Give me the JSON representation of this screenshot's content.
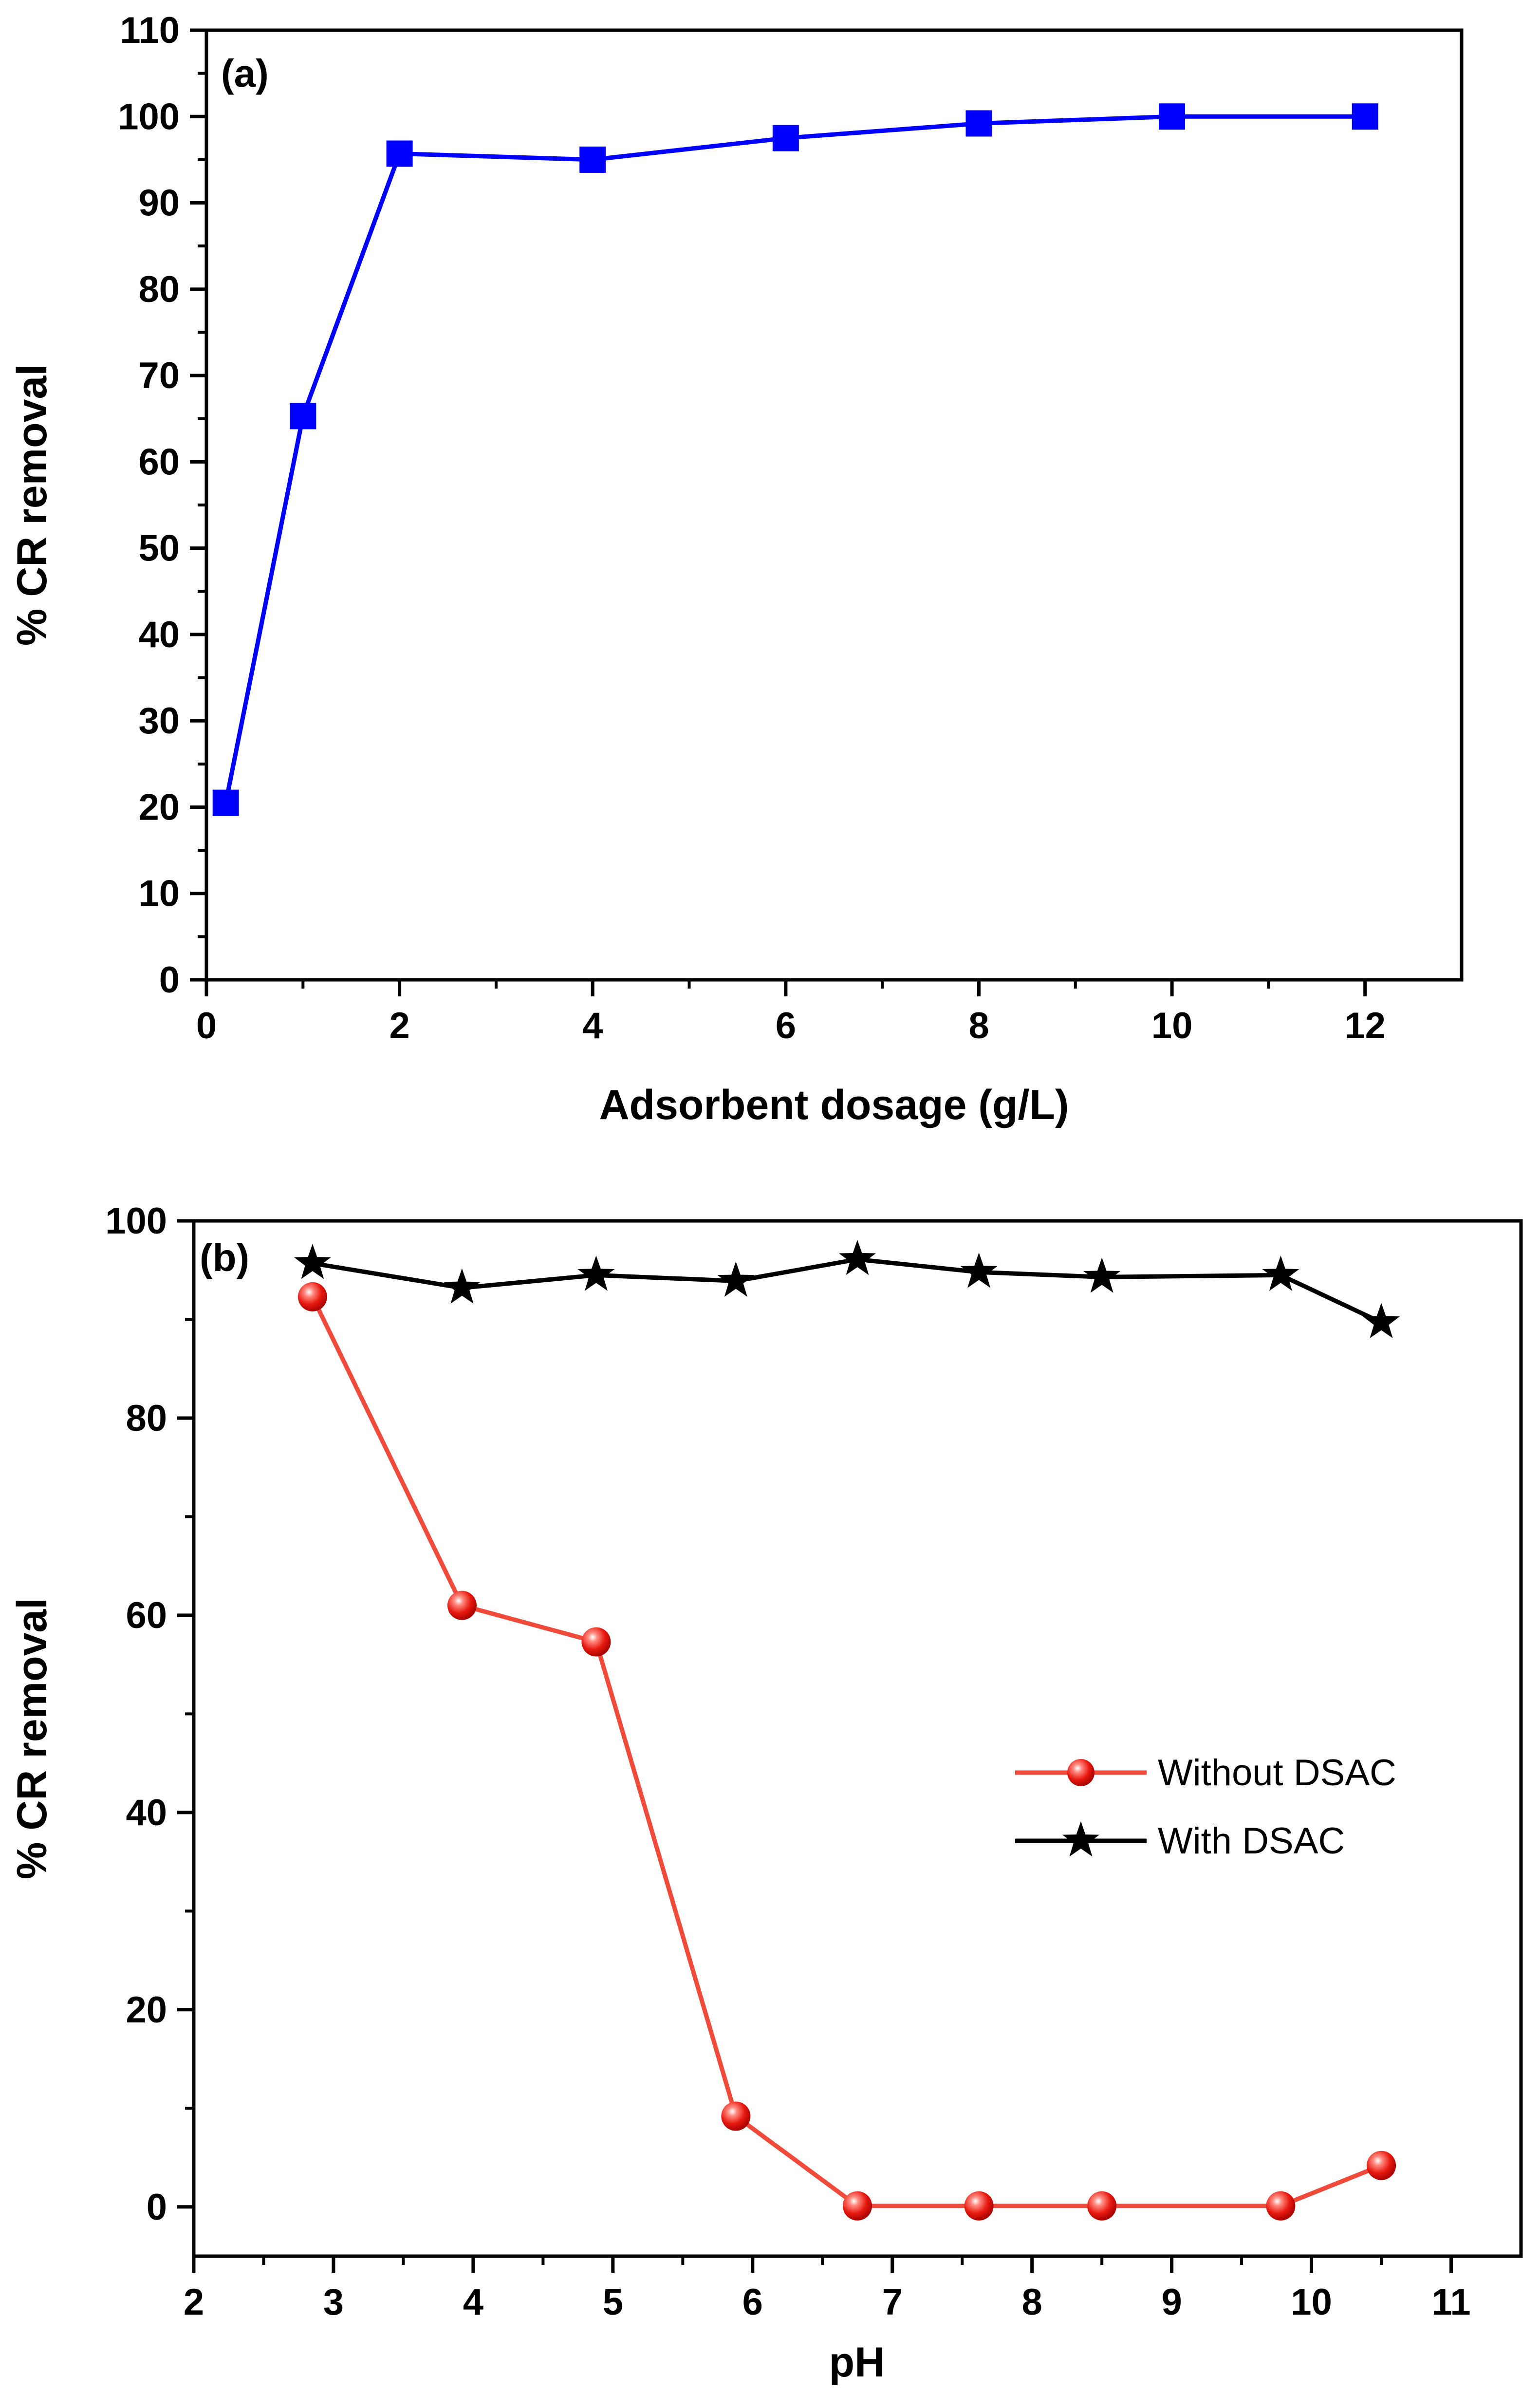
{
  "chart_data": [
    {
      "type": "line",
      "panel_label": "(a)",
      "title": "",
      "xlabel": "Adsorbent dosage (g/L)",
      "ylabel": "% CR removal",
      "xlim": [
        0,
        13
      ],
      "ylim": [
        0,
        110
      ],
      "xticks": [
        0,
        2,
        4,
        6,
        8,
        10,
        12
      ],
      "yticks": [
        0,
        10,
        20,
        30,
        40,
        50,
        60,
        70,
        80,
        90,
        100,
        110
      ],
      "grid": false,
      "colors": {
        "series": "#0000ff"
      },
      "series": [
        {
          "name": "CR removal",
          "marker": "square",
          "x": [
            0.2,
            1,
            2,
            4,
            6,
            8,
            10,
            12
          ],
          "values": [
            20.5,
            65.3,
            95.7,
            95.0,
            97.5,
            99.2,
            100.0,
            100.0
          ]
        }
      ]
    },
    {
      "type": "line",
      "panel_label": "(b)",
      "title": "",
      "xlabel": "pH",
      "ylabel": "% CR removal",
      "xlim": [
        2,
        11.5
      ],
      "ylim": [
        -5,
        100
      ],
      "xticks": [
        2,
        3,
        4,
        5,
        6,
        7,
        8,
        9,
        10,
        11
      ],
      "yticks": [
        0,
        20,
        40,
        60,
        80,
        100
      ],
      "grid": false,
      "legend_position": "center-right",
      "colors": {
        "without": "#f04a3a",
        "with": "#000000",
        "marker_fill": "#e81a10"
      },
      "series": [
        {
          "name": "Without DSAC",
          "marker": "sphere",
          "x": [
            2.85,
            3.92,
            4.88,
            5.88,
            6.75,
            7.62,
            8.5,
            9.78,
            10.5
          ],
          "values": [
            92.3,
            61.0,
            57.3,
            9.2,
            0.1,
            0.1,
            0.1,
            0.1,
            4.2
          ]
        },
        {
          "name": "With DSAC",
          "marker": "star",
          "x": [
            2.85,
            3.92,
            4.88,
            5.88,
            6.75,
            7.62,
            8.5,
            9.78,
            10.5
          ],
          "values": [
            95.7,
            93.2,
            94.5,
            93.9,
            96.1,
            94.8,
            94.3,
            94.5,
            89.7
          ]
        }
      ]
    }
  ]
}
